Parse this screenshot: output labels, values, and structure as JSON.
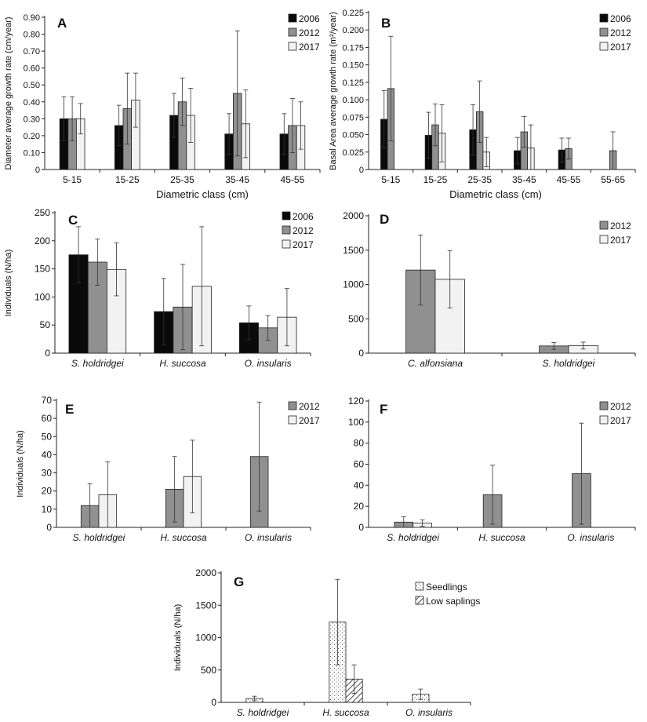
{
  "colors": {
    "2006": "#0a0a0a",
    "2012": "#909090",
    "2017": "#f2f2f2",
    "seedlings": "#ffffff",
    "low_saplings": "#ffffff"
  },
  "chart_data": [
    {
      "id": "A",
      "type": "bar",
      "panel_letter": "A",
      "ylabel": "Diameter average growth rate (cm/year)",
      "xlabel": "Diametric class (cm)",
      "ylim": [
        0,
        0.9
      ],
      "yticks": [
        "0",
        "0.10",
        "0.20",
        "0.30",
        "0.40",
        "0.50",
        "0.60",
        "0.70",
        "0.80",
        "0.90"
      ],
      "categories": [
        "5-15",
        "15-25",
        "25-35",
        "35-45",
        "45-55"
      ],
      "legend": [
        "2006",
        "2012",
        "2017"
      ],
      "series": [
        {
          "name": "2006",
          "color_key": "2006",
          "values": [
            0.3,
            0.26,
            0.32,
            0.21,
            0.21
          ],
          "errors": [
            0.13,
            0.12,
            0.13,
            0.12,
            0.12
          ]
        },
        {
          "name": "2012",
          "color_key": "2012",
          "values": [
            0.3,
            0.36,
            0.4,
            0.45,
            0.26
          ],
          "errors": [
            0.13,
            0.21,
            0.14,
            0.37,
            0.16
          ]
        },
        {
          "name": "2017",
          "color_key": "2017",
          "values": [
            0.3,
            0.41,
            0.32,
            0.27,
            0.26
          ],
          "errors": [
            0.09,
            0.16,
            0.16,
            0.2,
            0.14
          ]
        }
      ]
    },
    {
      "id": "B",
      "type": "bar",
      "panel_letter": "B",
      "ylabel": "Basal Area average growth rate (m²/year)",
      "xlabel": "Diametric class (cm)",
      "ylim": [
        0,
        0.225
      ],
      "yticks": [
        "0",
        "0.025",
        "0.050",
        "0.075",
        "0.100",
        "0.125",
        "0.150",
        "0.175",
        "0.200",
        "0.225"
      ],
      "categories": [
        "5-15",
        "15-25",
        "25-35",
        "35-45",
        "45-55",
        "55-65"
      ],
      "legend": [
        "2006",
        "2012",
        "2017"
      ],
      "series": [
        {
          "name": "2006",
          "color_key": "2006",
          "values": [
            0.072,
            0.049,
            0.057,
            0.027,
            0.028,
            null
          ],
          "errors": [
            0.041,
            0.033,
            0.036,
            0.019,
            0.017,
            null
          ]
        },
        {
          "name": "2012",
          "color_key": "2012",
          "values": [
            0.116,
            0.064,
            0.083,
            0.054,
            0.03,
            0.027
          ],
          "errors": [
            0.075,
            0.03,
            0.044,
            0.022,
            0.015,
            0.027
          ]
        },
        {
          "name": "2017",
          "color_key": "2017",
          "values": [
            null,
            0.052,
            0.025,
            0.031,
            null,
            null
          ],
          "errors": [
            null,
            0.041,
            0.021,
            0.033,
            null,
            null
          ]
        }
      ]
    },
    {
      "id": "C",
      "type": "bar",
      "panel_letter": "C",
      "ylabel": "Individuals (N/ha)",
      "xlabel": "",
      "ylim": [
        0,
        250
      ],
      "yticks": [
        "0",
        "50",
        "100",
        "150",
        "200",
        "250"
      ],
      "categories": [
        "S. holdridgei",
        "H. succosa",
        "O. insularis"
      ],
      "legend": [
        "2006",
        "2012",
        "2017"
      ],
      "series": [
        {
          "name": "2006",
          "color_key": "2006",
          "values": [
            175,
            74,
            54
          ],
          "errors": [
            50,
            59,
            30
          ]
        },
        {
          "name": "2012",
          "color_key": "2012",
          "values": [
            162,
            82,
            45
          ],
          "errors": [
            41,
            76,
            22
          ]
        },
        {
          "name": "2017",
          "color_key": "2017",
          "values": [
            149,
            119,
            64
          ],
          "errors": [
            47,
            106,
            51
          ]
        }
      ]
    },
    {
      "id": "D",
      "type": "bar",
      "panel_letter": "D",
      "ylabel": "",
      "xlabel": "",
      "ylim": [
        0,
        2000
      ],
      "yticks": [
        "0",
        "500",
        "1000",
        "1500",
        "2000"
      ],
      "categories": [
        "C. alfonsiana",
        "S. holdridgei"
      ],
      "legend": [
        "2012",
        "2017"
      ],
      "series": [
        {
          "name": "2012",
          "color_key": "2012",
          "values": [
            1210,
            105
          ],
          "errors": [
            510,
            50
          ]
        },
        {
          "name": "2017",
          "color_key": "2017",
          "values": [
            1075,
            110
          ],
          "errors": [
            415,
            50
          ]
        }
      ]
    },
    {
      "id": "E",
      "type": "bar",
      "panel_letter": "E",
      "ylabel": "Individuals (N/ha)",
      "xlabel": "",
      "ylim": [
        0,
        70
      ],
      "yticks": [
        "0",
        "10",
        "20",
        "30",
        "40",
        "50",
        "60",
        "70"
      ],
      "categories": [
        "S. holdridgei",
        "H. succosa",
        "O. insularis"
      ],
      "legend": [
        "2012",
        "2017"
      ],
      "series": [
        {
          "name": "2012",
          "color_key": "2012",
          "values": [
            12,
            21,
            39
          ],
          "errors": [
            12,
            18,
            30
          ]
        },
        {
          "name": "2017",
          "color_key": "2017",
          "values": [
            18,
            28,
            null
          ],
          "errors": [
            18,
            20,
            null
          ]
        }
      ]
    },
    {
      "id": "F",
      "type": "bar",
      "panel_letter": "F",
      "ylabel": "",
      "xlabel": "",
      "ylim": [
        0,
        120
      ],
      "yticks": [
        "0",
        "20",
        "40",
        "60",
        "80",
        "100",
        "120"
      ],
      "categories": [
        "S. holdridgei",
        "H. succosa",
        "O. insularis"
      ],
      "legend": [
        "2012",
        "2017"
      ],
      "series": [
        {
          "name": "2012",
          "color_key": "2012",
          "values": [
            5,
            31,
            51
          ],
          "errors": [
            5,
            28,
            48
          ]
        },
        {
          "name": "2017",
          "color_key": "2017",
          "values": [
            4,
            null,
            null
          ],
          "errors": [
            3,
            null,
            null
          ]
        }
      ]
    },
    {
      "id": "G",
      "type": "bar",
      "panel_letter": "G",
      "ylabel": "Individuals (N/ha)",
      "xlabel": "",
      "ylim": [
        0,
        2000
      ],
      "yticks": [
        "0",
        "500",
        "1000",
        "1500",
        "2000"
      ],
      "categories": [
        "S. holdridgei",
        "H. succosa",
        "O. insularis"
      ],
      "legend": [
        "Seedlings",
        "Low saplings"
      ],
      "series": [
        {
          "name": "Seedlings",
          "color_key": "seedlings",
          "pattern": "dots",
          "values": [
            60,
            1240,
            125
          ],
          "errors": [
            35,
            660,
            80
          ]
        },
        {
          "name": "Low saplings",
          "color_key": "low_saplings",
          "pattern": "hatch",
          "values": [
            null,
            360,
            null
          ],
          "errors": [
            null,
            220,
            null
          ]
        }
      ]
    }
  ]
}
